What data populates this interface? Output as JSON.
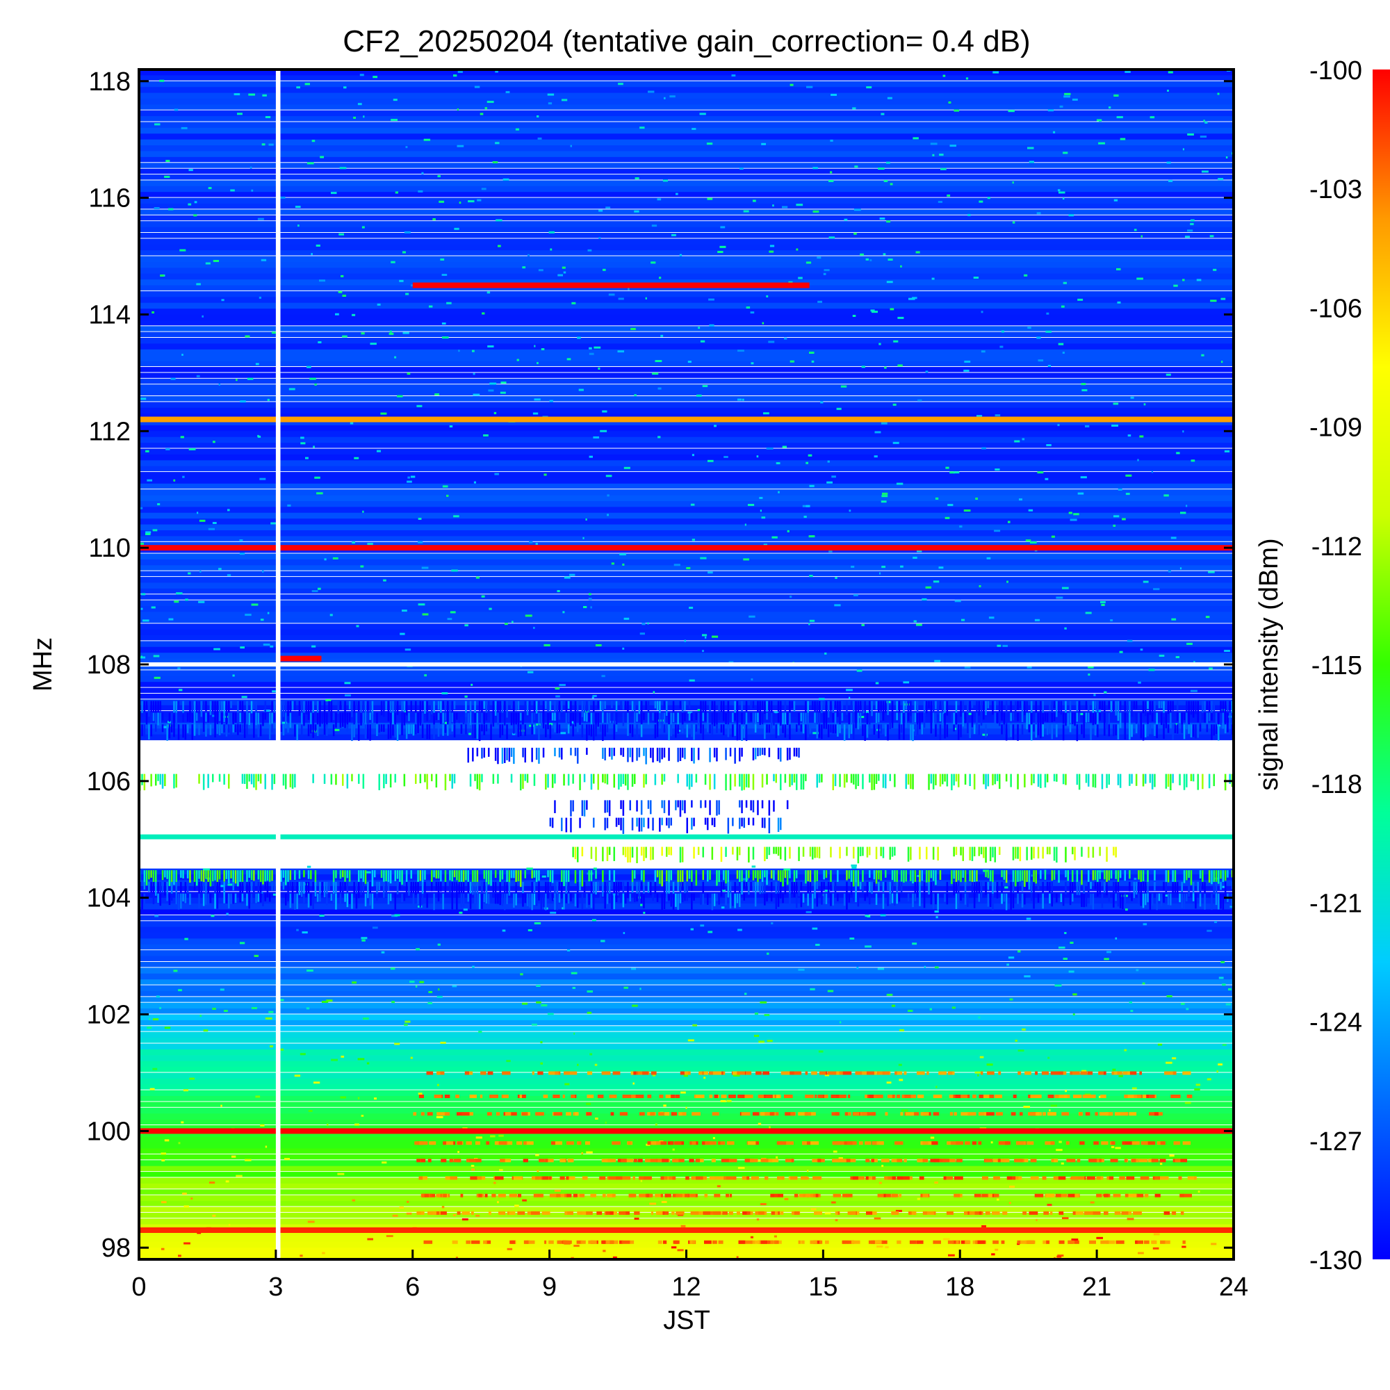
{
  "chart_data": {
    "type": "heatmap",
    "title": "CF2_20250204 (tentative gain_correction=  0.4 dB)",
    "xlabel": "JST",
    "ylabel": "MHz",
    "colorbar_label": "signal intensity (dBm)",
    "xlim": [
      0,
      24
    ],
    "ylim": [
      97.8,
      118.2
    ],
    "x_ticks": [
      "0",
      "3",
      "6",
      "9",
      "12",
      "15",
      "18",
      "21",
      "24"
    ],
    "y_ticks": [
      "98",
      "100",
      "102",
      "104",
      "106",
      "108",
      "110",
      "112",
      "114",
      "116",
      "118"
    ],
    "colorbar_range": [
      -130,
      -100
    ],
    "colorbar_ticks": [
      "-100",
      "-103",
      "-106",
      "-109",
      "-112",
      "-115",
      "-118",
      "-121",
      "-124",
      "-127",
      "-130"
    ],
    "colormap": [
      "#0000ff",
      "#0066ff",
      "#00ccff",
      "#00ff99",
      "#33ff00",
      "#ccff00",
      "#ffff00",
      "#ff9900",
      "#ff0000"
    ],
    "data_gap": {
      "x": [
        3.0,
        3.1
      ],
      "note": ""
    },
    "strong_signals": [
      {
        "freq": 114.5,
        "x_start": 6.0,
        "x_end": 14.7,
        "level": -100
      },
      {
        "freq": 112.2,
        "x_start": 0,
        "x_end": 24,
        "level": -104
      },
      {
        "freq": 110.0,
        "x_start": 0,
        "x_end": 24,
        "level": -100
      },
      {
        "freq": 108.1,
        "x_start": 3.0,
        "x_end": 4.0,
        "level": -100
      },
      {
        "freq": 100.0,
        "x_start": 0,
        "x_end": 24,
        "level": -100
      },
      {
        "freq": 98.3,
        "x_start": 0,
        "x_end": 24,
        "level": -101
      }
    ],
    "background_profile": [
      {
        "freq": 118,
        "level": -128
      },
      {
        "freq": 108.2,
        "level": -128
      },
      {
        "freq": 103.5,
        "level": -129
      },
      {
        "freq": 102,
        "level": -124
      },
      {
        "freq": 101,
        "level": -119
      },
      {
        "freq": 100,
        "level": -117
      },
      {
        "freq": 99,
        "level": -113
      },
      {
        "freq": 98,
        "level": -109
      }
    ]
  }
}
